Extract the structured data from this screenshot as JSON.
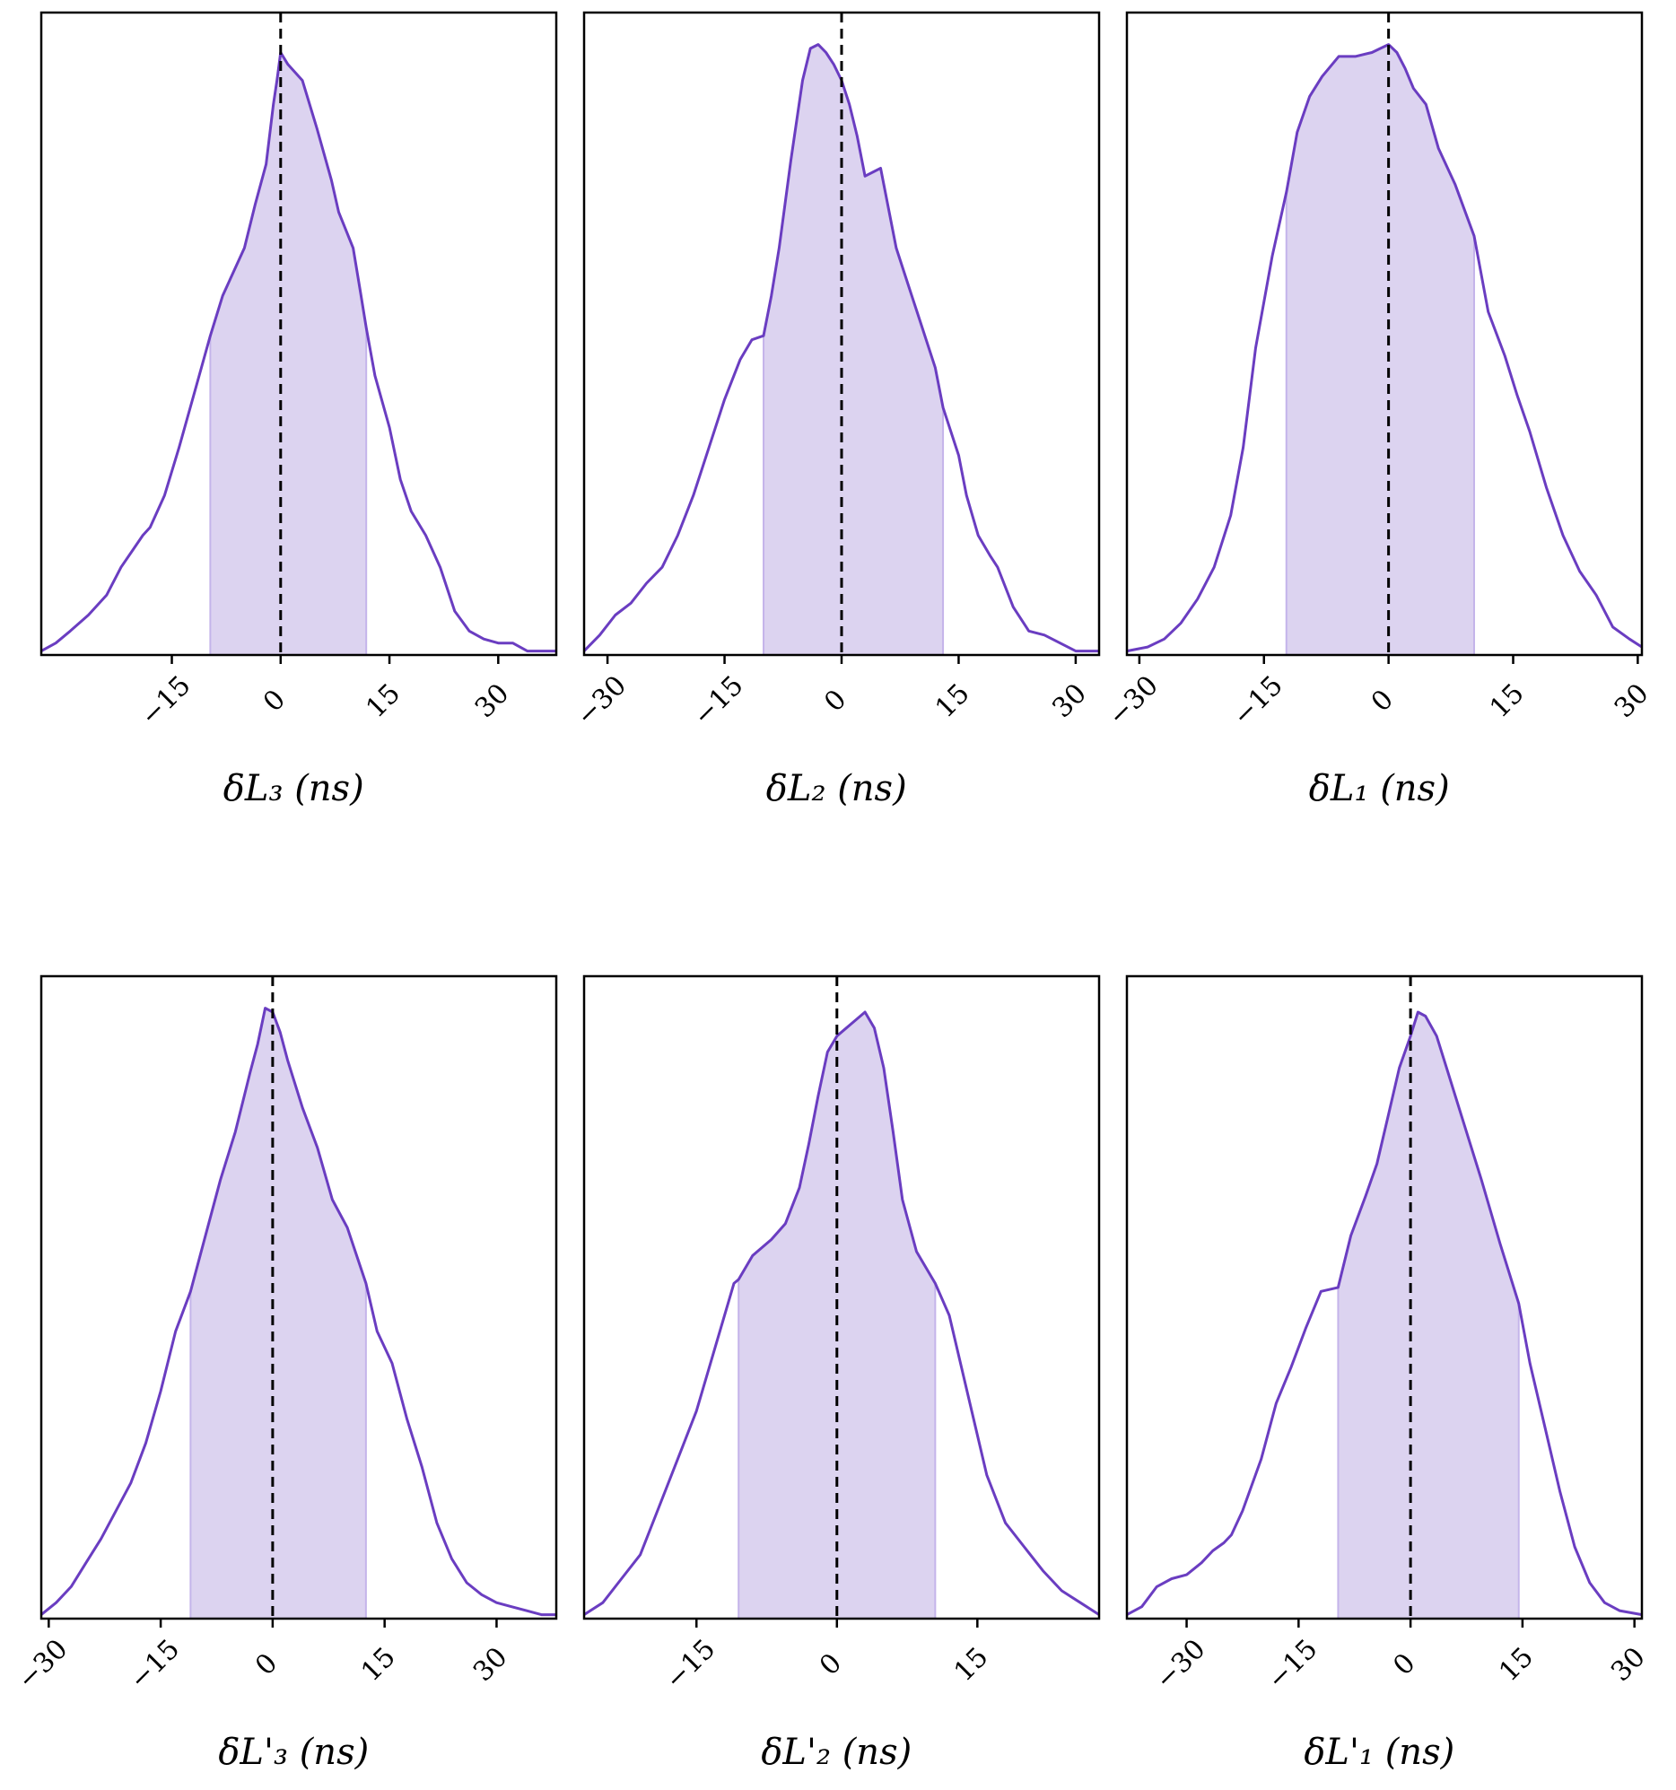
{
  "colors": {
    "line": "#6a3dc1",
    "fill": "#dcd3f0",
    "ci_edge": "#c4b4ea",
    "reference": "#000000",
    "frame": "#000000"
  },
  "chart_data": [
    {
      "type": "area",
      "xlabel": "δL₃ (ns)",
      "xlim": [
        -33,
        38
      ],
      "xticks": [
        -15,
        0,
        15,
        30
      ],
      "xticklabels": [
        "−15",
        "0",
        "15",
        "30"
      ],
      "reference_x": 0,
      "interval": [
        -9.7,
        11.8
      ],
      "x": [
        -33,
        -31,
        -29,
        -26.5,
        -24,
        -22,
        -20.5,
        -19,
        -18,
        -16,
        -14,
        -12,
        -10,
        -9.7,
        -8,
        -6.5,
        -5,
        -3.5,
        -2,
        -1,
        -0.5,
        0,
        1,
        3,
        5,
        7,
        8,
        10,
        11,
        11.8,
        13,
        15,
        16.5,
        18,
        20,
        22,
        24,
        26,
        28,
        30,
        32,
        34,
        35.5,
        38
      ],
      "y": [
        0.01,
        0.03,
        0.06,
        0.1,
        0.15,
        0.22,
        0.26,
        0.3,
        0.32,
        0.4,
        0.52,
        0.65,
        0.78,
        0.8,
        0.9,
        0.96,
        1.02,
        1.13,
        1.23,
        1.38,
        1.44,
        1.51,
        1.48,
        1.44,
        1.32,
        1.19,
        1.11,
        1.02,
        0.91,
        0.82,
        0.7,
        0.57,
        0.44,
        0.36,
        0.3,
        0.22,
        0.11,
        0.06,
        0.04,
        0.03,
        0.03,
        0.01,
        0.01,
        0.01
      ]
    },
    {
      "type": "area",
      "xlabel": "δL₂ (ns)",
      "xlim": [
        -33,
        33
      ],
      "xticks": [
        -30,
        -15,
        0,
        15,
        30
      ],
      "xticklabels": [
        "−30",
        "−15",
        "0",
        "15",
        "30"
      ],
      "reference_x": 0,
      "interval": [
        -10,
        13
      ],
      "x": [
        -33,
        -31,
        -29,
        -27,
        -25,
        -23,
        -21,
        -19,
        -17,
        -15,
        -13,
        -11.5,
        -10,
        -9,
        -8,
        -6.5,
        -5,
        -4,
        -3,
        -2,
        -1,
        0,
        1,
        2,
        3,
        4,
        5,
        6,
        7,
        8.5,
        10,
        12,
        13,
        15,
        16,
        17.5,
        19,
        20,
        22,
        24,
        26,
        28,
        30,
        33
      ],
      "y": [
        0.01,
        0.05,
        0.1,
        0.13,
        0.18,
        0.22,
        0.3,
        0.4,
        0.52,
        0.64,
        0.74,
        0.79,
        0.8,
        0.9,
        1.02,
        1.24,
        1.44,
        1.52,
        1.53,
        1.51,
        1.48,
        1.44,
        1.38,
        1.3,
        1.2,
        1.21,
        1.22,
        1.12,
        1.02,
        0.93,
        0.84,
        0.72,
        0.62,
        0.5,
        0.4,
        0.3,
        0.25,
        0.22,
        0.12,
        0.06,
        0.05,
        0.03,
        0.01,
        0.01
      ]
    },
    {
      "type": "area",
      "xlabel": "δL₁ (ns)",
      "xlim": [
        -31.5,
        30.5
      ],
      "xticks": [
        -30,
        -15,
        0,
        15,
        30
      ],
      "xticklabels": [
        "−30",
        "−15",
        "0",
        "15",
        "30"
      ],
      "reference_x": 0,
      "interval": [
        -12.3,
        10.3
      ],
      "x": [
        -31.5,
        -29,
        -27,
        -25,
        -23,
        -21,
        -19,
        -17.5,
        -16,
        -14,
        -12.3,
        -11,
        -9.5,
        -8,
        -6,
        -4,
        -2,
        -1,
        0,
        1,
        2,
        3,
        4.5,
        6,
        8,
        10.3,
        12,
        14,
        15.5,
        17,
        19,
        21,
        23,
        25,
        27,
        29,
        30.5
      ],
      "y": [
        0.01,
        0.02,
        0.04,
        0.08,
        0.14,
        0.22,
        0.35,
        0.52,
        0.77,
        1.0,
        1.16,
        1.31,
        1.4,
        1.45,
        1.5,
        1.5,
        1.51,
        1.52,
        1.53,
        1.51,
        1.47,
        1.42,
        1.38,
        1.27,
        1.18,
        1.05,
        0.86,
        0.75,
        0.65,
        0.56,
        0.42,
        0.3,
        0.21,
        0.15,
        0.07,
        0.04,
        0.02
      ]
    },
    {
      "type": "area",
      "xlabel": "δL'₃ (ns)",
      "xlim": [
        -31,
        38
      ],
      "xticks": [
        -30,
        -15,
        0,
        15,
        30
      ],
      "xticklabels": [
        "−30",
        "−15",
        "0",
        "15",
        "30"
      ],
      "reference_x": 0,
      "interval": [
        -11,
        12.5
      ],
      "x": [
        -31,
        -29,
        -27,
        -25,
        -23,
        -21,
        -19,
        -17,
        -15,
        -13,
        -11,
        -9,
        -7,
        -5,
        -3,
        -2,
        -1,
        0,
        1,
        2,
        4,
        6,
        8,
        10,
        12.5,
        14,
        16,
        18,
        20,
        22,
        24,
        26,
        28,
        30,
        32,
        34,
        36,
        38
      ],
      "y": [
        0.01,
        0.04,
        0.08,
        0.14,
        0.2,
        0.27,
        0.34,
        0.44,
        0.57,
        0.72,
        0.82,
        0.96,
        1.1,
        1.22,
        1.37,
        1.44,
        1.53,
        1.52,
        1.47,
        1.4,
        1.28,
        1.18,
        1.05,
        0.98,
        0.84,
        0.72,
        0.64,
        0.5,
        0.38,
        0.24,
        0.15,
        0.09,
        0.06,
        0.04,
        0.03,
        0.02,
        0.01,
        0.01
      ]
    },
    {
      "type": "area",
      "xlabel": "δL'₂ (ns)",
      "xlim": [
        -27,
        28
      ],
      "xticks": [
        -15,
        0,
        15
      ],
      "xticklabels": [
        "−15",
        "0",
        "15"
      ],
      "reference_x": 0,
      "interval": [
        -10.5,
        10.5
      ],
      "x": [
        -27,
        -25,
        -23,
        -21,
        -19,
        -17,
        -15,
        -13,
        -11,
        -10.5,
        -9,
        -7,
        -5.5,
        -4,
        -3,
        -2,
        -1,
        0,
        1,
        2,
        3,
        4,
        5,
        6,
        7,
        8.5,
        10.5,
        12,
        14,
        16,
        18,
        20,
        22,
        24,
        26,
        28
      ],
      "y": [
        0.01,
        0.04,
        0.1,
        0.16,
        0.28,
        0.4,
        0.52,
        0.68,
        0.84,
        0.85,
        0.91,
        0.95,
        0.99,
        1.08,
        1.19,
        1.31,
        1.42,
        1.46,
        1.48,
        1.5,
        1.52,
        1.48,
        1.38,
        1.22,
        1.05,
        0.92,
        0.84,
        0.76,
        0.56,
        0.36,
        0.24,
        0.18,
        0.12,
        0.07,
        0.04,
        0.01
      ]
    },
    {
      "type": "area",
      "xlabel": "δL'₁ (ns)",
      "xlim": [
        -38,
        31
      ],
      "xticks": [
        -30,
        -15,
        0,
        15,
        30
      ],
      "xticklabels": [
        "−30",
        "−15",
        "0",
        "15",
        "30"
      ],
      "reference_x": 0,
      "interval": [
        -9.7,
        14.5
      ],
      "x": [
        -38,
        -36,
        -34,
        -32,
        -30,
        -28,
        -26.5,
        -25,
        -24,
        -22.5,
        -20,
        -18,
        -16,
        -14,
        -12,
        -9.7,
        -8,
        -6,
        -4.5,
        -3,
        -1.5,
        0,
        1,
        2,
        3.5,
        5,
        7,
        9.5,
        12,
        14.5,
        16,
        18,
        20,
        22,
        24,
        26,
        28,
        31
      ],
      "y": [
        0.01,
        0.03,
        0.08,
        0.1,
        0.11,
        0.14,
        0.17,
        0.19,
        0.21,
        0.27,
        0.4,
        0.54,
        0.63,
        0.73,
        0.82,
        0.83,
        0.96,
        1.06,
        1.14,
        1.26,
        1.38,
        1.46,
        1.52,
        1.51,
        1.46,
        1.37,
        1.25,
        1.1,
        0.94,
        0.79,
        0.64,
        0.48,
        0.32,
        0.18,
        0.09,
        0.04,
        0.02,
        0.01
      ]
    }
  ]
}
